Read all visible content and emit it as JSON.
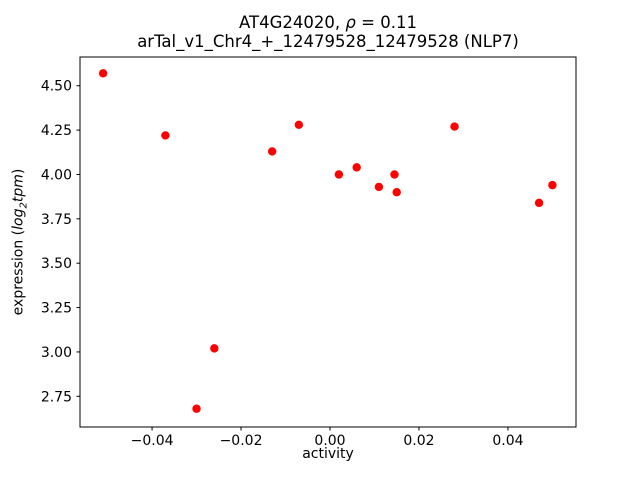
{
  "figure": {
    "title_prefix": "AT4G24020, ",
    "title_rho": "ρ",
    "title_rest": " = 0.11",
    "title_line2": "arTal_v1_Chr4_+_12479528_12479528 (NLP7)",
    "xlabel": "activity",
    "ylabel_open": "expression (",
    "ylabel_log": "log",
    "ylabel_sub": "2",
    "ylabel_tpm": "tpm",
    "ylabel_close": ")"
  },
  "chart_data": {
    "type": "scatter",
    "title": "AT4G24020, ρ = 0.11\narTal_v1_Chr4_+_12479528_12479528 (NLP7)",
    "xlabel": "activity",
    "ylabel": "expression (log2 tpm)",
    "marker_color": "#ff0000",
    "marker_radius_px": 4.2,
    "grid": false,
    "legend": false,
    "xlim": [
      -0.0562,
      0.0553
    ],
    "ylim": [
      2.577,
      4.662
    ],
    "xticks": [
      {
        "value": -0.04,
        "label": "−0.04"
      },
      {
        "value": -0.02,
        "label": "−0.02"
      },
      {
        "value": 0.0,
        "label": "0.00"
      },
      {
        "value": 0.02,
        "label": "0.02"
      },
      {
        "value": 0.04,
        "label": "0.04"
      }
    ],
    "yticks": [
      {
        "value": 2.75,
        "label": "2.75"
      },
      {
        "value": 3.0,
        "label": "3.00"
      },
      {
        "value": 3.25,
        "label": "3.25"
      },
      {
        "value": 3.5,
        "label": "3.50"
      },
      {
        "value": 3.75,
        "label": "3.75"
      },
      {
        "value": 4.0,
        "label": "4.00"
      },
      {
        "value": 4.25,
        "label": "4.25"
      },
      {
        "value": 4.5,
        "label": "4.50"
      }
    ],
    "points": [
      {
        "x": -0.051,
        "y": 4.57
      },
      {
        "x": -0.037,
        "y": 4.22
      },
      {
        "x": -0.03,
        "y": 2.68
      },
      {
        "x": -0.026,
        "y": 3.02
      },
      {
        "x": -0.013,
        "y": 4.13
      },
      {
        "x": -0.007,
        "y": 4.28
      },
      {
        "x": 0.002,
        "y": 4.0
      },
      {
        "x": 0.006,
        "y": 4.04
      },
      {
        "x": 0.011,
        "y": 3.93
      },
      {
        "x": 0.0145,
        "y": 4.0
      },
      {
        "x": 0.015,
        "y": 3.9
      },
      {
        "x": 0.028,
        "y": 4.27
      },
      {
        "x": 0.047,
        "y": 3.84
      },
      {
        "x": 0.05,
        "y": 3.94
      }
    ]
  }
}
